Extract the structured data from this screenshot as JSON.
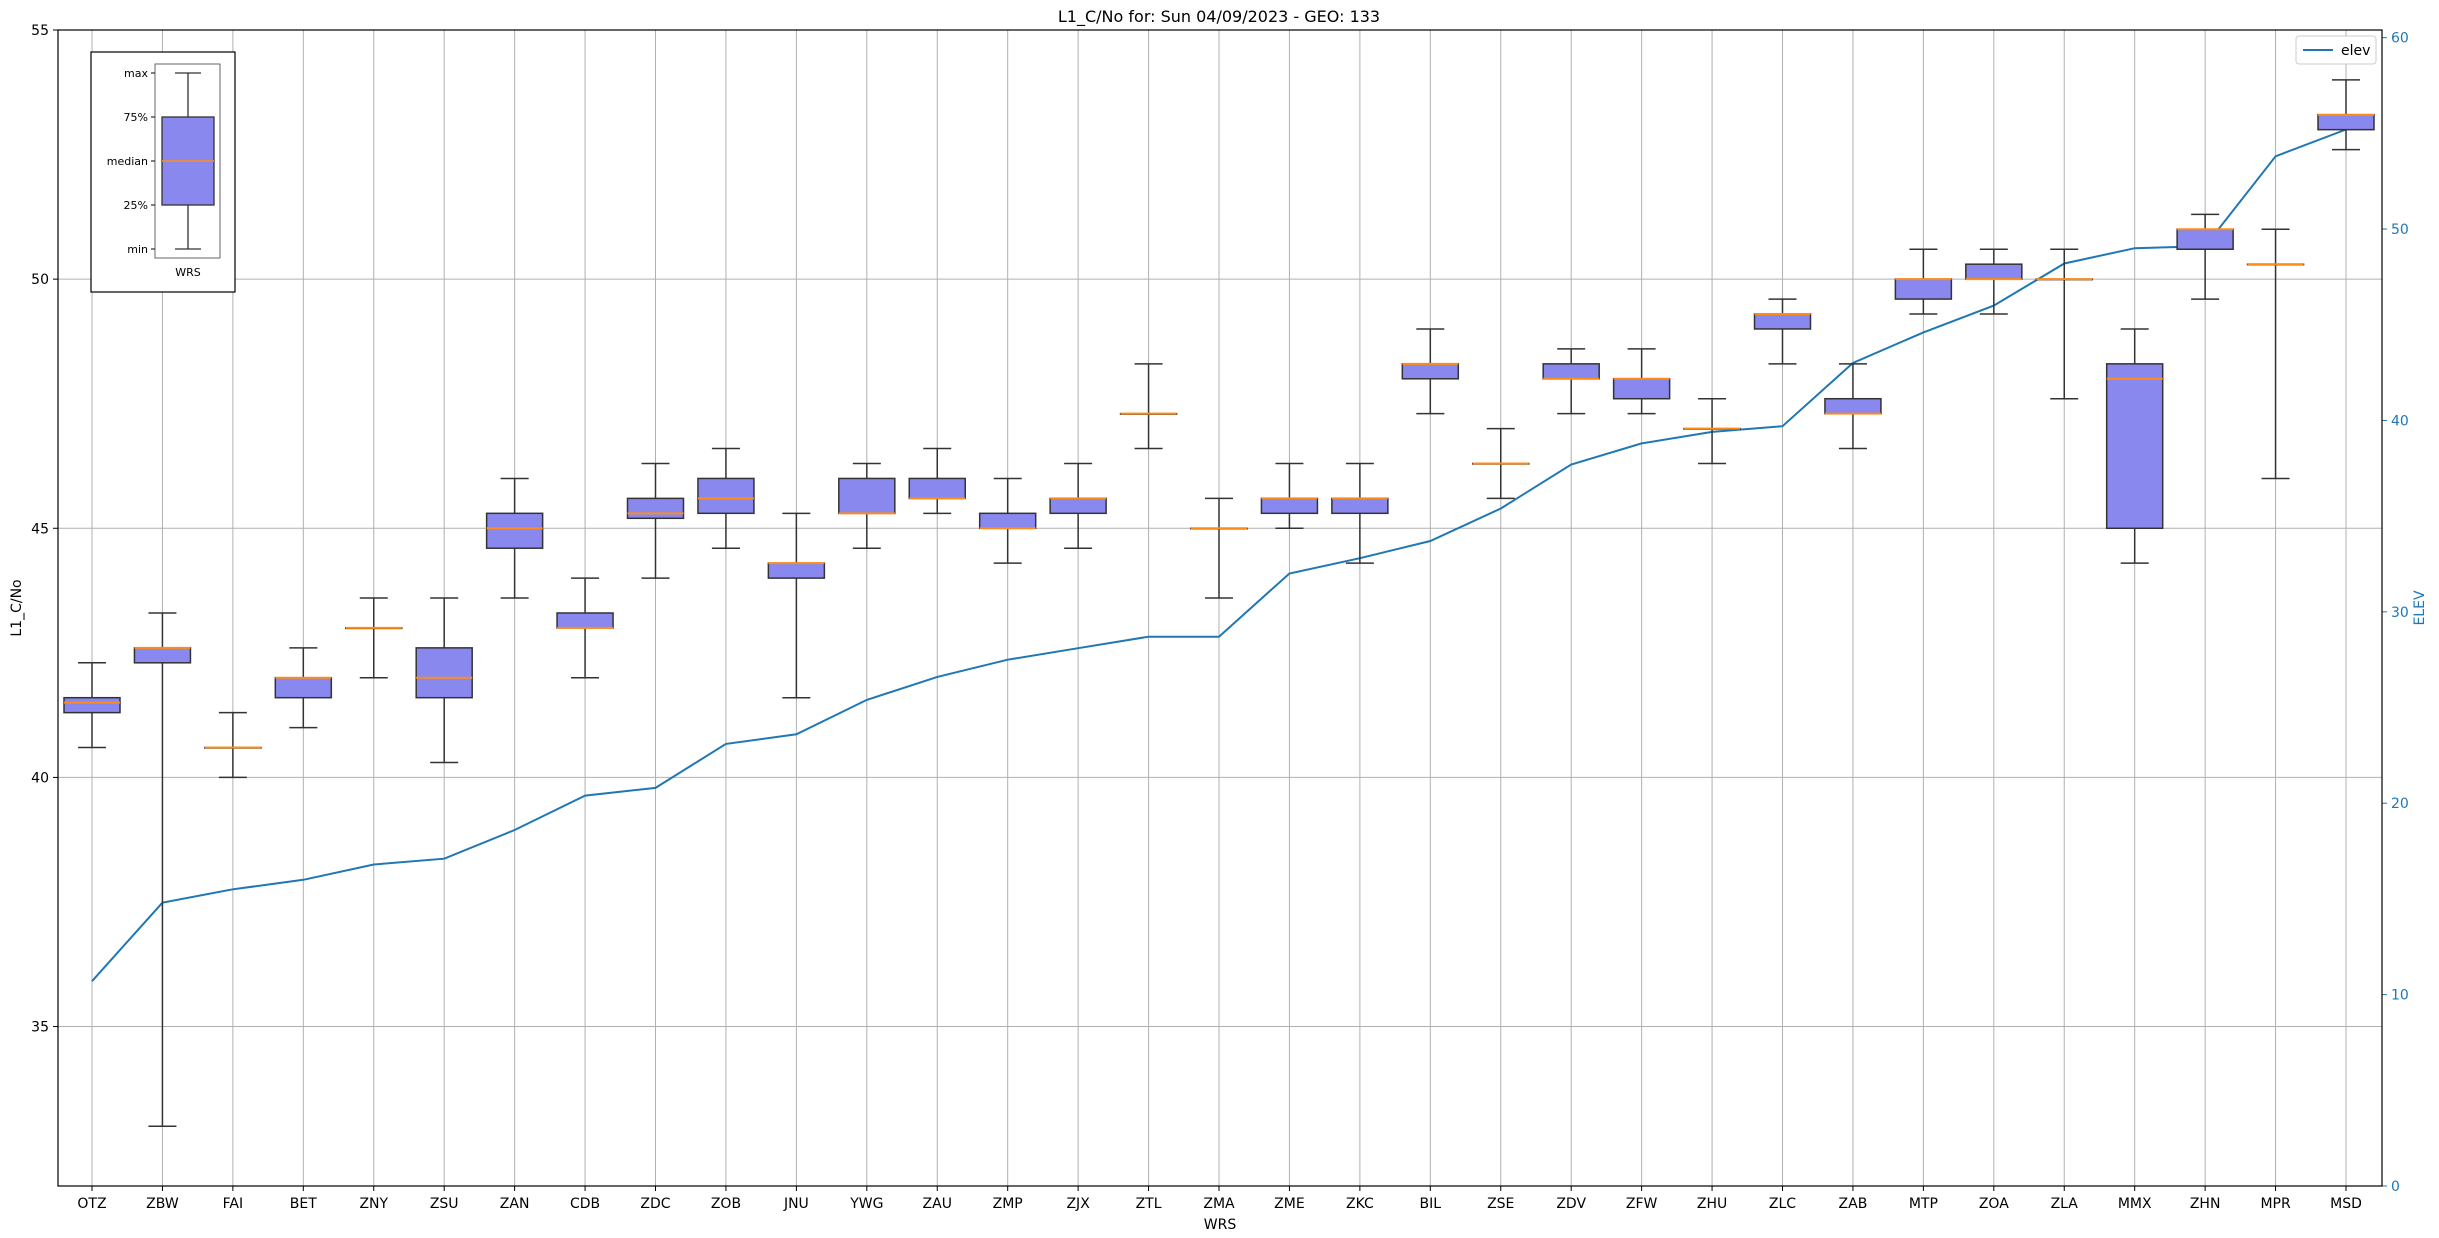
{
  "chart_data": {
    "type": "box",
    "title": "L1_C/No for: Sun 04/09/2023 - GEO: 133",
    "xlabel": "WRS",
    "ylabel": "L1_C/No",
    "y2label": "ELEV",
    "ylim": [
      31.8,
      55.0
    ],
    "y2lim": [
      0,
      60.4
    ],
    "yticks": [
      35,
      40,
      45,
      50,
      55
    ],
    "y2ticks": [
      0,
      10,
      20,
      30,
      40,
      50,
      60
    ],
    "grid": true,
    "legend": {
      "position": "top-right",
      "entries": [
        "elev"
      ]
    },
    "colors": {
      "box_fill": "#8888ee",
      "box_edge": "#333333",
      "median": "#ff8c1a",
      "whisker": "#333333",
      "elev_line": "#1f77b4",
      "grid": "#b0b0b0"
    },
    "categories": [
      "OTZ",
      "ZBW",
      "FAI",
      "BET",
      "ZNY",
      "ZSU",
      "ZAN",
      "CDB",
      "ZDC",
      "ZOB",
      "JNU",
      "YWG",
      "ZAU",
      "ZMP",
      "ZJX",
      "ZTL",
      "ZMA",
      "ZME",
      "ZKC",
      "BIL",
      "ZSE",
      "ZDV",
      "ZFW",
      "ZHU",
      "ZLC",
      "ZAB",
      "MTP",
      "ZOA",
      "ZLA",
      "MMX",
      "ZHN",
      "MPR",
      "MSD"
    ],
    "boxes": [
      {
        "min": 40.6,
        "q1": 41.3,
        "median": 41.5,
        "q3": 41.6,
        "max": 42.3
      },
      {
        "min": 33.0,
        "q1": 42.3,
        "median": 42.6,
        "q3": 42.6,
        "max": 43.3
      },
      {
        "min": 40.0,
        "q1": 40.6,
        "median": 40.6,
        "q3": 40.6,
        "max": 41.3
      },
      {
        "min": 41.0,
        "q1": 41.6,
        "median": 42.0,
        "q3": 42.0,
        "max": 42.6
      },
      {
        "min": 42.0,
        "q1": 43.0,
        "median": 43.0,
        "q3": 43.0,
        "max": 43.6
      },
      {
        "min": 40.3,
        "q1": 41.6,
        "median": 42.0,
        "q3": 42.6,
        "max": 43.6
      },
      {
        "min": 43.6,
        "q1": 44.6,
        "median": 45.0,
        "q3": 45.3,
        "max": 46.0
      },
      {
        "min": 42.0,
        "q1": 43.0,
        "median": 43.0,
        "q3": 43.3,
        "max": 44.0
      },
      {
        "min": 44.0,
        "q1": 45.2,
        "median": 45.3,
        "q3": 45.6,
        "max": 46.3
      },
      {
        "min": 44.6,
        "q1": 45.3,
        "median": 45.6,
        "q3": 46.0,
        "max": 46.6
      },
      {
        "min": 41.6,
        "q1": 44.0,
        "median": 44.3,
        "q3": 44.3,
        "max": 45.3
      },
      {
        "min": 44.6,
        "q1": 45.3,
        "median": 45.3,
        "q3": 46.0,
        "max": 46.3
      },
      {
        "min": 45.3,
        "q1": 45.6,
        "median": 45.6,
        "q3": 46.0,
        "max": 46.6
      },
      {
        "min": 44.3,
        "q1": 45.0,
        "median": 45.0,
        "q3": 45.3,
        "max": 46.0
      },
      {
        "min": 44.6,
        "q1": 45.3,
        "median": 45.6,
        "q3": 45.6,
        "max": 46.3
      },
      {
        "min": 46.6,
        "q1": 47.3,
        "median": 47.3,
        "q3": 47.3,
        "max": 48.3
      },
      {
        "min": 43.6,
        "q1": 45.0,
        "median": 45.0,
        "q3": 45.0,
        "max": 45.6
      },
      {
        "min": 45.0,
        "q1": 45.3,
        "median": 45.6,
        "q3": 45.6,
        "max": 46.3
      },
      {
        "min": 44.3,
        "q1": 45.3,
        "median": 45.6,
        "q3": 45.6,
        "max": 46.3
      },
      {
        "min": 47.3,
        "q1": 48.0,
        "median": 48.3,
        "q3": 48.3,
        "max": 49.0
      },
      {
        "min": 45.6,
        "q1": 46.3,
        "median": 46.3,
        "q3": 46.3,
        "max": 47.0
      },
      {
        "min": 47.3,
        "q1": 48.0,
        "median": 48.0,
        "q3": 48.3,
        "max": 48.6
      },
      {
        "min": 47.3,
        "q1": 47.6,
        "median": 48.0,
        "q3": 48.0,
        "max": 48.6
      },
      {
        "min": 46.3,
        "q1": 47.0,
        "median": 47.0,
        "q3": 47.0,
        "max": 47.6
      },
      {
        "min": 48.3,
        "q1": 49.0,
        "median": 49.3,
        "q3": 49.3,
        "max": 49.6
      },
      {
        "min": 46.6,
        "q1": 47.3,
        "median": 47.3,
        "q3": 47.6,
        "max": 48.3
      },
      {
        "min": 49.3,
        "q1": 49.6,
        "median": 50.0,
        "q3": 50.0,
        "max": 50.6
      },
      {
        "min": 49.3,
        "q1": 50.0,
        "median": 50.0,
        "q3": 50.3,
        "max": 50.6
      },
      {
        "min": 47.6,
        "q1": 50.0,
        "median": 50.0,
        "q3": 50.0,
        "max": 50.6
      },
      {
        "min": 44.3,
        "q1": 45.0,
        "median": 48.0,
        "q3": 48.3,
        "max": 49.0
      },
      {
        "min": 49.6,
        "q1": 50.6,
        "median": 51.0,
        "q3": 51.0,
        "max": 51.3
      },
      {
        "min": 46.0,
        "q1": 50.3,
        "median": 50.3,
        "q3": 50.3,
        "max": 51.0
      },
      {
        "min": 52.6,
        "q1": 53.0,
        "median": 53.3,
        "q3": 53.3,
        "max": 54.0
      }
    ],
    "series": [
      {
        "name": "elev",
        "axis": "right",
        "values": [
          10.7,
          14.8,
          15.5,
          16.0,
          16.8,
          17.1,
          18.6,
          20.4,
          20.8,
          23.1,
          23.6,
          25.4,
          26.6,
          27.5,
          28.1,
          28.7,
          28.7,
          32.0,
          32.8,
          33.7,
          35.4,
          37.7,
          38.8,
          39.4,
          39.7,
          43.0,
          44.6,
          46.0,
          48.2,
          49.0,
          49.1,
          53.8,
          55.2
        ]
      }
    ],
    "inset_legend": {
      "labels": [
        "max",
        "75%",
        "median",
        "25%",
        "min"
      ],
      "xlabel": "WRS"
    }
  }
}
